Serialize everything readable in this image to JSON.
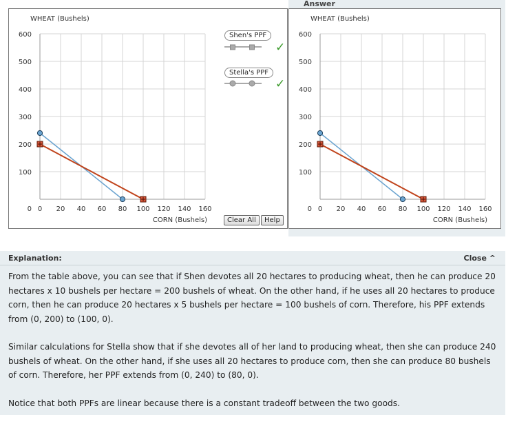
{
  "answer_title": "Answer",
  "buttons": {
    "clear_all": "Clear All",
    "help": "Help"
  },
  "legend": {
    "shen": "Shen's PPF",
    "stella": "Stella's PPF",
    "check_glyph": "✓"
  },
  "explanation": {
    "label": "Explanation:",
    "close": "Close ^",
    "paragraphs": [
      "From the table above, you can see that if Shen devotes all 20 hectares to producing wheat, then he can produce 20 hectares x 10 bushels per hectare = 200 bushels of wheat. On the other hand, if he uses all 20 hectares to produce corn, then he can produce 20 hectares x 5 bushels per hectare = 100 bushels of corn. Therefore, his PPF extends from (0, 200) to (100, 0).",
      "Similar calculations for Stella show that if she devotes all of her land to producing wheat, then she can produce 240 bushels of wheat. On the other hand, if she uses all 20 hectares to produce corn, then she can produce 80 bushels of corn. Therefore, her PPF extends from (0, 240) to (80, 0).",
      "Notice that both PPFs are linear because there is a constant tradeoff between the two goods."
    ]
  },
  "colors": {
    "shen": "#c0441c",
    "stella": "#6aa3cf",
    "check": "#3a9a2a",
    "grid": "#d4d4d4"
  },
  "chart_data": [
    {
      "type": "line",
      "xlabel": "CORN (Bushels)",
      "ylabel": "WHEAT (Bushels)",
      "xlim": [
        0,
        160
      ],
      "ylim": [
        0,
        600
      ],
      "xticks": [
        0,
        20,
        40,
        60,
        80,
        100,
        120,
        140,
        160
      ],
      "yticks": [
        0,
        100,
        200,
        300,
        400,
        500,
        600
      ],
      "grid": true,
      "series": [
        {
          "name": "Shen's PPF",
          "marker": "plus",
          "x": [
            0,
            100
          ],
          "y": [
            200,
            0
          ]
        },
        {
          "name": "Stella's PPF",
          "marker": "circle",
          "x": [
            0,
            80
          ],
          "y": [
            240,
            0
          ]
        }
      ]
    },
    {
      "type": "line",
      "title": "Answer",
      "xlabel": "CORN (Bushels)",
      "ylabel": "WHEAT (Bushels)",
      "xlim": [
        0,
        160
      ],
      "ylim": [
        0,
        600
      ],
      "xticks": [
        0,
        20,
        40,
        60,
        80,
        100,
        120,
        140,
        160
      ],
      "yticks": [
        0,
        100,
        200,
        300,
        400,
        500,
        600
      ],
      "grid": true,
      "series": [
        {
          "marker": "plus",
          "x": [
            0,
            100
          ],
          "y": [
            200,
            0
          ]
        },
        {
          "marker": "circle",
          "x": [
            0,
            80
          ],
          "y": [
            240,
            0
          ]
        }
      ]
    }
  ]
}
